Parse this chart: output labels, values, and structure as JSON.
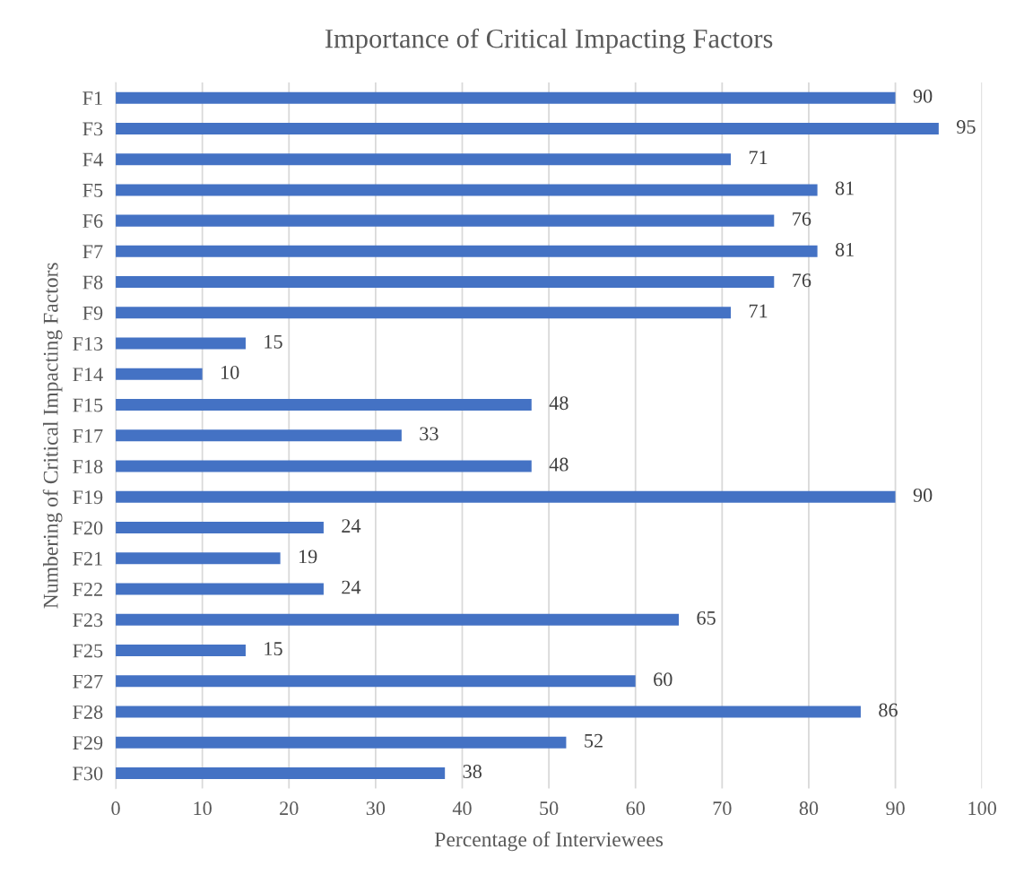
{
  "chart_data": {
    "type": "bar",
    "orientation": "horizontal",
    "title": "Importance of Critical Impacting Factors",
    "xlabel": "Percentage of Interviewees",
    "ylabel": "Numbering of Critical Impacting Factors",
    "categories": [
      "F1",
      "F3",
      "F4",
      "F5",
      "F6",
      "F7",
      "F8",
      "F9",
      "F13",
      "F14",
      "F15",
      "F17",
      "F18",
      "F19",
      "F20",
      "F21",
      "F22",
      "F23",
      "F25",
      "F27",
      "F28",
      "F29",
      "F30"
    ],
    "values": [
      90,
      95,
      71,
      81,
      76,
      81,
      76,
      71,
      15,
      10,
      48,
      33,
      48,
      90,
      24,
      19,
      24,
      65,
      15,
      60,
      86,
      52,
      38
    ],
    "color": "#4472c4",
    "xlim": [
      0,
      100
    ],
    "xticks": [
      0,
      10,
      20,
      30,
      40,
      50,
      60,
      70,
      80,
      90,
      100
    ],
    "grid": "x",
    "data_labels": true
  }
}
